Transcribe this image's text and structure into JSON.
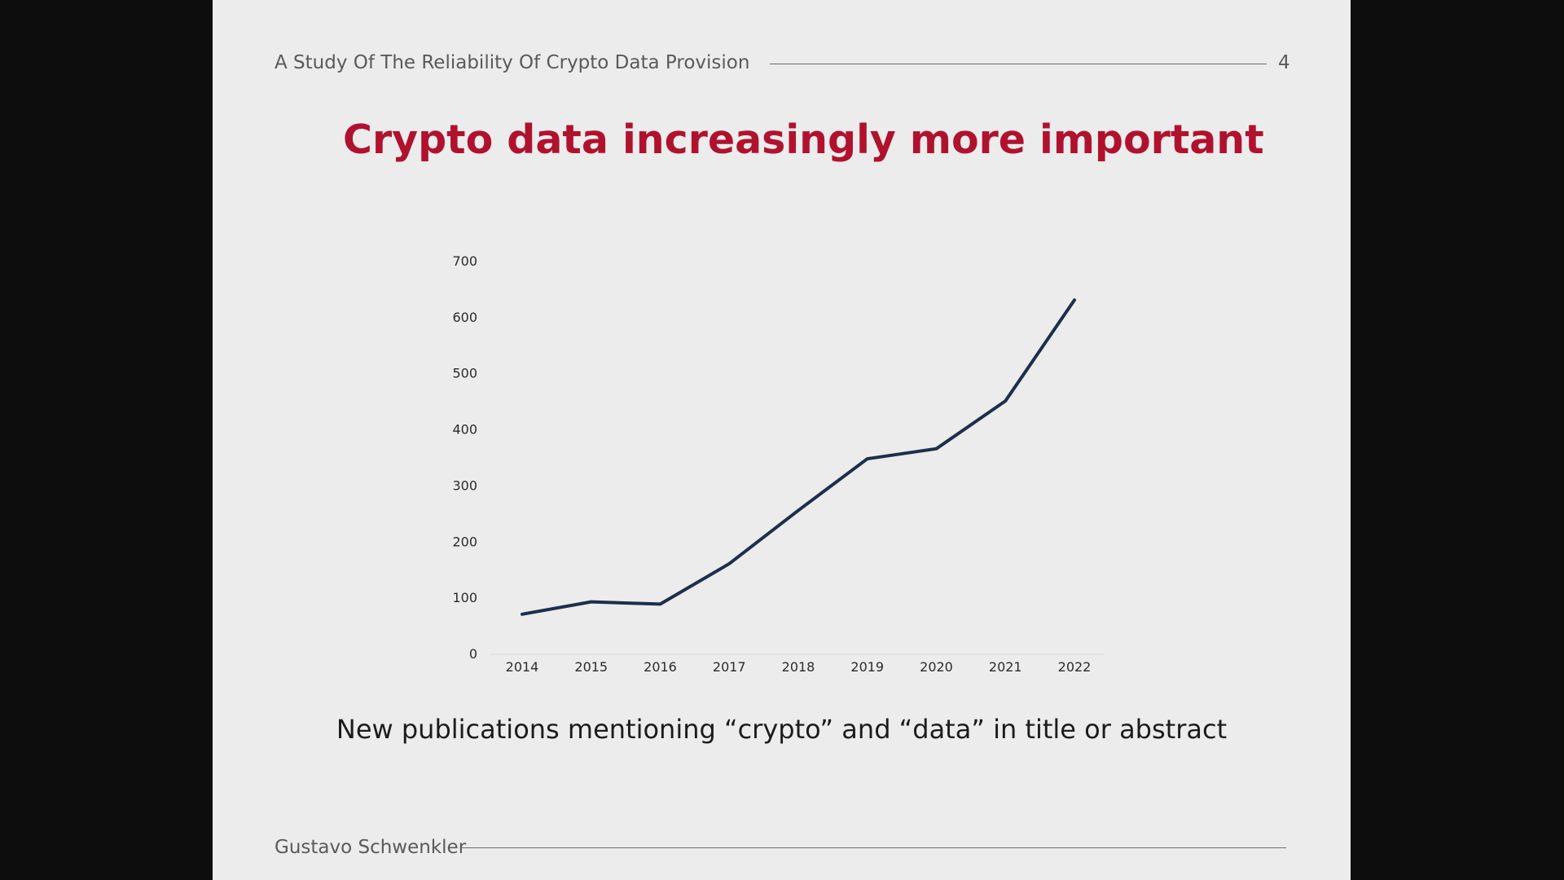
{
  "slide": {
    "header_title": "A Study Of The Reliability Of Crypto Data Provision",
    "page_number": "4",
    "title": "Crypto data increasingly more important",
    "caption": "New publications mentioning “crypto” and “data” in title or abstract",
    "footer_author": "Gustavo Schwenkler"
  },
  "colors": {
    "background": "#ececec",
    "title": "#b0122e",
    "line": "#1c2f4d",
    "text": "#2b2b2b"
  },
  "chart_data": {
    "type": "line",
    "title": "",
    "xlabel": "",
    "ylabel": "",
    "categories": [
      "2014",
      "2015",
      "2016",
      "2017",
      "2018",
      "2019",
      "2020",
      "2021",
      "2022"
    ],
    "series": [
      {
        "values": [
          70,
          92,
          88,
          160,
          255,
          347,
          365,
          450,
          630
        ]
      }
    ],
    "ylim": [
      0,
      700
    ],
    "yticks": [
      "0",
      "100",
      "200",
      "300",
      "400",
      "500",
      "600",
      "700"
    ],
    "grid": false,
    "legend": "none"
  }
}
